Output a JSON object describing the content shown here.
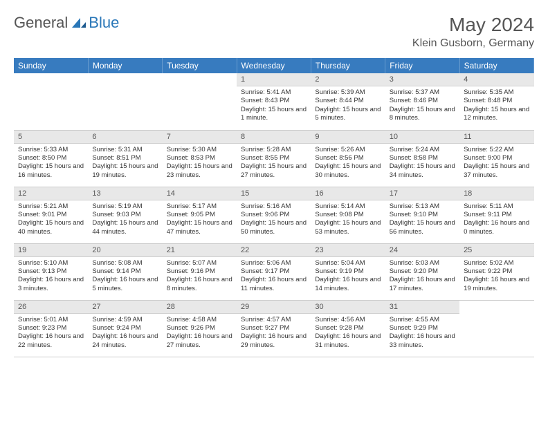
{
  "brand": {
    "part1": "General",
    "part2": "Blue"
  },
  "title": "May 2024",
  "location": "Klein Gusborn, Germany",
  "colors": {
    "header_bg": "#377bbf",
    "header_text": "#ffffff",
    "daynum_bg": "#e8e8e8",
    "text": "#333333",
    "brand_gray": "#555555",
    "brand_blue": "#2a77b8"
  },
  "weekdays": [
    "Sunday",
    "Monday",
    "Tuesday",
    "Wednesday",
    "Thursday",
    "Friday",
    "Saturday"
  ],
  "weeks": [
    [
      {
        "n": "",
        "sr": "",
        "ss": "",
        "dl": ""
      },
      {
        "n": "",
        "sr": "",
        "ss": "",
        "dl": ""
      },
      {
        "n": "",
        "sr": "",
        "ss": "",
        "dl": ""
      },
      {
        "n": "1",
        "sr": "5:41 AM",
        "ss": "8:43 PM",
        "dl": "15 hours and 1 minute."
      },
      {
        "n": "2",
        "sr": "5:39 AM",
        "ss": "8:44 PM",
        "dl": "15 hours and 5 minutes."
      },
      {
        "n": "3",
        "sr": "5:37 AM",
        "ss": "8:46 PM",
        "dl": "15 hours and 8 minutes."
      },
      {
        "n": "4",
        "sr": "5:35 AM",
        "ss": "8:48 PM",
        "dl": "15 hours and 12 minutes."
      }
    ],
    [
      {
        "n": "5",
        "sr": "5:33 AM",
        "ss": "8:50 PM",
        "dl": "15 hours and 16 minutes."
      },
      {
        "n": "6",
        "sr": "5:31 AM",
        "ss": "8:51 PM",
        "dl": "15 hours and 19 minutes."
      },
      {
        "n": "7",
        "sr": "5:30 AM",
        "ss": "8:53 PM",
        "dl": "15 hours and 23 minutes."
      },
      {
        "n": "8",
        "sr": "5:28 AM",
        "ss": "8:55 PM",
        "dl": "15 hours and 27 minutes."
      },
      {
        "n": "9",
        "sr": "5:26 AM",
        "ss": "8:56 PM",
        "dl": "15 hours and 30 minutes."
      },
      {
        "n": "10",
        "sr": "5:24 AM",
        "ss": "8:58 PM",
        "dl": "15 hours and 34 minutes."
      },
      {
        "n": "11",
        "sr": "5:22 AM",
        "ss": "9:00 PM",
        "dl": "15 hours and 37 minutes."
      }
    ],
    [
      {
        "n": "12",
        "sr": "5:21 AM",
        "ss": "9:01 PM",
        "dl": "15 hours and 40 minutes."
      },
      {
        "n": "13",
        "sr": "5:19 AM",
        "ss": "9:03 PM",
        "dl": "15 hours and 44 minutes."
      },
      {
        "n": "14",
        "sr": "5:17 AM",
        "ss": "9:05 PM",
        "dl": "15 hours and 47 minutes."
      },
      {
        "n": "15",
        "sr": "5:16 AM",
        "ss": "9:06 PM",
        "dl": "15 hours and 50 minutes."
      },
      {
        "n": "16",
        "sr": "5:14 AM",
        "ss": "9:08 PM",
        "dl": "15 hours and 53 minutes."
      },
      {
        "n": "17",
        "sr": "5:13 AM",
        "ss": "9:10 PM",
        "dl": "15 hours and 56 minutes."
      },
      {
        "n": "18",
        "sr": "5:11 AM",
        "ss": "9:11 PM",
        "dl": "16 hours and 0 minutes."
      }
    ],
    [
      {
        "n": "19",
        "sr": "5:10 AM",
        "ss": "9:13 PM",
        "dl": "16 hours and 3 minutes."
      },
      {
        "n": "20",
        "sr": "5:08 AM",
        "ss": "9:14 PM",
        "dl": "16 hours and 5 minutes."
      },
      {
        "n": "21",
        "sr": "5:07 AM",
        "ss": "9:16 PM",
        "dl": "16 hours and 8 minutes."
      },
      {
        "n": "22",
        "sr": "5:06 AM",
        "ss": "9:17 PM",
        "dl": "16 hours and 11 minutes."
      },
      {
        "n": "23",
        "sr": "5:04 AM",
        "ss": "9:19 PM",
        "dl": "16 hours and 14 minutes."
      },
      {
        "n": "24",
        "sr": "5:03 AM",
        "ss": "9:20 PM",
        "dl": "16 hours and 17 minutes."
      },
      {
        "n": "25",
        "sr": "5:02 AM",
        "ss": "9:22 PM",
        "dl": "16 hours and 19 minutes."
      }
    ],
    [
      {
        "n": "26",
        "sr": "5:01 AM",
        "ss": "9:23 PM",
        "dl": "16 hours and 22 minutes."
      },
      {
        "n": "27",
        "sr": "4:59 AM",
        "ss": "9:24 PM",
        "dl": "16 hours and 24 minutes."
      },
      {
        "n": "28",
        "sr": "4:58 AM",
        "ss": "9:26 PM",
        "dl": "16 hours and 27 minutes."
      },
      {
        "n": "29",
        "sr": "4:57 AM",
        "ss": "9:27 PM",
        "dl": "16 hours and 29 minutes."
      },
      {
        "n": "30",
        "sr": "4:56 AM",
        "ss": "9:28 PM",
        "dl": "16 hours and 31 minutes."
      },
      {
        "n": "31",
        "sr": "4:55 AM",
        "ss": "9:29 PM",
        "dl": "16 hours and 33 minutes."
      },
      {
        "n": "",
        "sr": "",
        "ss": "",
        "dl": ""
      }
    ]
  ],
  "labels": {
    "sunrise": "Sunrise:",
    "sunset": "Sunset:",
    "daylight": "Daylight:"
  }
}
